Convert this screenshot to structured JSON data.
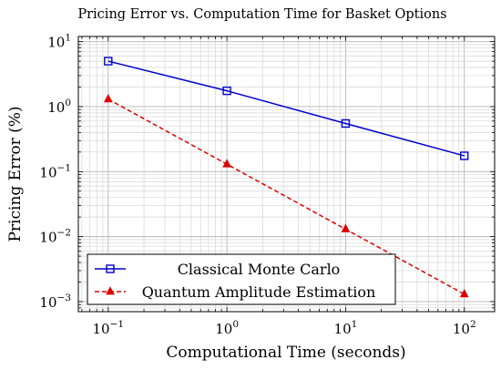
{
  "chart_data": {
    "type": "line",
    "title": "Pricing Error vs. Computation Time for Basket Options",
    "xlabel": "Computational Time (seconds)",
    "ylabel": "Pricing Error (%)",
    "xscale": "log",
    "yscale": "log",
    "xlim": [
      0.056,
      180
    ],
    "ylim": [
      0.0007,
      12
    ],
    "grid": true,
    "x_ticks": [
      {
        "value": 0.1,
        "base": "10",
        "exp": "−1"
      },
      {
        "value": 1,
        "base": "10",
        "exp": "0"
      },
      {
        "value": 10,
        "base": "10",
        "exp": "1"
      },
      {
        "value": 100,
        "base": "10",
        "exp": "2"
      }
    ],
    "y_ticks": [
      {
        "value": 0.001,
        "base": "10",
        "exp": "−3"
      },
      {
        "value": 0.01,
        "base": "10",
        "exp": "−2"
      },
      {
        "value": 0.1,
        "base": "10",
        "exp": "−1"
      },
      {
        "value": 1,
        "base": "10",
        "exp": "0"
      },
      {
        "value": 10,
        "base": "10",
        "exp": "1"
      }
    ],
    "x": [
      0.1,
      1,
      10,
      100
    ],
    "legend_position": "bottom-left",
    "series": [
      {
        "name": "Classical Monte Carlo",
        "values": [
          5.0,
          1.75,
          0.55,
          0.175
        ],
        "color": "#0000cc",
        "marker": "square",
        "dash": "solid"
      },
      {
        "name": "Quantum Amplitude Estimation",
        "values": [
          1.3,
          0.13,
          0.013,
          0.0013
        ],
        "color": "#dd0000",
        "marker": "triangle",
        "dash": "dashed"
      }
    ]
  }
}
